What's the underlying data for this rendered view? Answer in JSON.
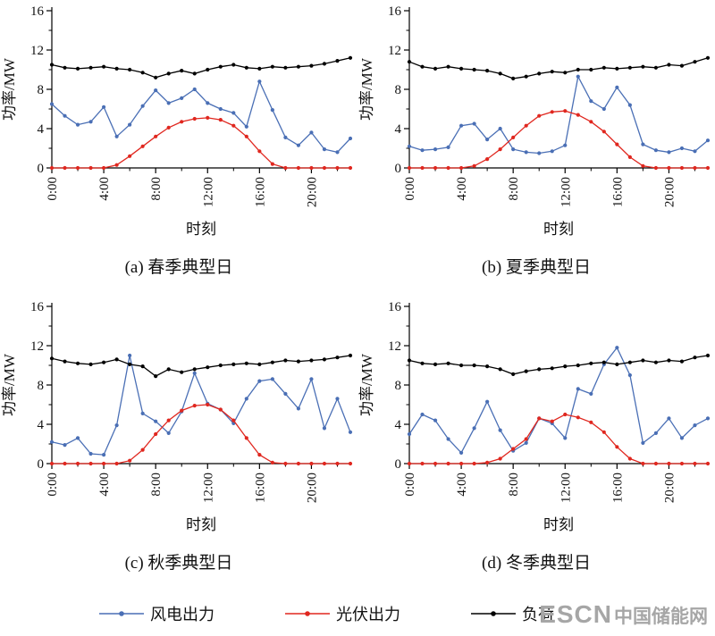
{
  "figure": {
    "ylabel": "功率/MW",
    "xlabel": "时刻",
    "background": "#ffffff"
  },
  "legend": {
    "items": [
      {
        "label": "风电出力",
        "color": "#4a6fb5"
      },
      {
        "label": "光伏出力",
        "color": "#e0271f"
      },
      {
        "label": "负荷",
        "color": "#000000"
      }
    ]
  },
  "watermark": {
    "text_en": "ESCN",
    "text_cn": "中国储能网"
  },
  "chart_data": [
    {
      "type": "line",
      "title": "(a) 春季典型日",
      "xlabel": "时刻",
      "ylabel": "功率/MW",
      "ylim": [
        0,
        16
      ],
      "yticks": [
        0,
        4,
        8,
        12,
        16
      ],
      "xtick_hours": [
        0,
        4,
        8,
        12,
        16,
        20
      ],
      "xtick_labels": [
        "0:00",
        "4:00",
        "8:00",
        "12:00",
        "16:00",
        "20:00"
      ],
      "x_hours": [
        0,
        1,
        2,
        3,
        4,
        5,
        6,
        7,
        8,
        9,
        10,
        11,
        12,
        13,
        14,
        15,
        16,
        17,
        18,
        19,
        20,
        21,
        22,
        23
      ],
      "series": [
        {
          "name": "风电出力",
          "color": "#4a6fb5",
          "values": [
            6.5,
            5.3,
            4.4,
            4.7,
            6.2,
            3.2,
            4.4,
            6.3,
            7.9,
            6.6,
            7.1,
            8.0,
            6.6,
            6.0,
            5.6,
            4.2,
            8.8,
            5.9,
            3.1,
            2.3,
            3.6,
            1.9,
            1.6,
            3.0
          ]
        },
        {
          "name": "光伏出力",
          "color": "#e0271f",
          "values": [
            0,
            0,
            0,
            0,
            0,
            0.3,
            1.2,
            2.2,
            3.2,
            4.1,
            4.7,
            5.0,
            5.1,
            4.9,
            4.3,
            3.2,
            1.7,
            0.4,
            0,
            0,
            0,
            0,
            0,
            0
          ]
        },
        {
          "name": "负荷",
          "color": "#000000",
          "values": [
            10.5,
            10.2,
            10.1,
            10.2,
            10.3,
            10.1,
            10.0,
            9.7,
            9.2,
            9.6,
            9.9,
            9.6,
            10.0,
            10.3,
            10.5,
            10.2,
            10.1,
            10.3,
            10.2,
            10.3,
            10.4,
            10.6,
            10.9,
            11.2
          ]
        }
      ]
    },
    {
      "type": "line",
      "title": "(b) 夏季典型日",
      "xlabel": "时刻",
      "ylabel": "功率/MW",
      "ylim": [
        0,
        16
      ],
      "yticks": [
        0,
        4,
        8,
        12,
        16
      ],
      "xtick_hours": [
        0,
        4,
        8,
        12,
        16,
        20
      ],
      "xtick_labels": [
        "0:00",
        "4:00",
        "8:00",
        "12:00",
        "16:00",
        "20:00"
      ],
      "x_hours": [
        0,
        1,
        2,
        3,
        4,
        5,
        6,
        7,
        8,
        9,
        10,
        11,
        12,
        13,
        14,
        15,
        16,
        17,
        18,
        19,
        20,
        21,
        22,
        23
      ],
      "series": [
        {
          "name": "风电出力",
          "color": "#4a6fb5",
          "values": [
            2.2,
            1.8,
            1.9,
            2.1,
            4.3,
            4.5,
            2.9,
            4.0,
            1.9,
            1.6,
            1.5,
            1.7,
            2.3,
            9.3,
            6.8,
            6.0,
            8.2,
            6.4,
            2.4,
            1.8,
            1.6,
            2.0,
            1.7,
            2.8
          ]
        },
        {
          "name": "光伏出力",
          "color": "#e0271f",
          "values": [
            0,
            0,
            0,
            0,
            0,
            0.2,
            0.9,
            1.9,
            3.1,
            4.3,
            5.3,
            5.7,
            5.8,
            5.4,
            4.7,
            3.7,
            2.4,
            1.1,
            0.2,
            0,
            0,
            0,
            0,
            0
          ]
        },
        {
          "name": "负荷",
          "color": "#000000",
          "values": [
            10.8,
            10.3,
            10.1,
            10.3,
            10.1,
            10.0,
            9.9,
            9.6,
            9.1,
            9.3,
            9.6,
            9.8,
            9.7,
            10.0,
            10.0,
            10.2,
            10.1,
            10.2,
            10.3,
            10.2,
            10.5,
            10.4,
            10.8,
            11.2
          ]
        }
      ]
    },
    {
      "type": "line",
      "title": "(c) 秋季典型日",
      "xlabel": "时刻",
      "ylabel": "功率/MW",
      "ylim": [
        0,
        16
      ],
      "yticks": [
        0,
        4,
        8,
        12,
        16
      ],
      "xtick_hours": [
        0,
        4,
        8,
        12,
        16,
        20
      ],
      "xtick_labels": [
        "0:00",
        "4:00",
        "8:00",
        "12:00",
        "16:00",
        "20:00"
      ],
      "x_hours": [
        0,
        1,
        2,
        3,
        4,
        5,
        6,
        7,
        8,
        9,
        10,
        11,
        12,
        13,
        14,
        15,
        16,
        17,
        18,
        19,
        20,
        21,
        22,
        23
      ],
      "series": [
        {
          "name": "风电出力",
          "color": "#4a6fb5",
          "values": [
            2.2,
            1.9,
            2.6,
            1.0,
            0.9,
            3.9,
            11.0,
            5.1,
            4.3,
            3.1,
            5.3,
            9.2,
            6.1,
            5.5,
            4.1,
            6.6,
            8.4,
            8.6,
            7.1,
            5.6,
            8.6,
            3.6,
            6.6,
            3.2
          ]
        },
        {
          "name": "光伏出力",
          "color": "#e0271f",
          "values": [
            0,
            0,
            0,
            0,
            0,
            0,
            0.3,
            1.4,
            3.0,
            4.4,
            5.4,
            5.9,
            6.0,
            5.5,
            4.4,
            2.6,
            0.9,
            0.1,
            0,
            0,
            0,
            0,
            0,
            0
          ]
        },
        {
          "name": "负荷",
          "color": "#000000",
          "values": [
            10.7,
            10.4,
            10.2,
            10.1,
            10.3,
            10.6,
            10.1,
            9.9,
            8.9,
            9.6,
            9.3,
            9.6,
            9.8,
            10.0,
            10.1,
            10.2,
            10.1,
            10.3,
            10.5,
            10.4,
            10.5,
            10.6,
            10.8,
            11.0
          ]
        }
      ]
    },
    {
      "type": "line",
      "title": "(d) 冬季典型日",
      "xlabel": "时刻",
      "ylabel": "功率/MW",
      "ylim": [
        0,
        16
      ],
      "yticks": [
        0,
        4,
        8,
        12,
        16
      ],
      "xtick_hours": [
        0,
        4,
        8,
        12,
        16,
        20
      ],
      "xtick_labels": [
        "0:00",
        "4:00",
        "8:00",
        "12:00",
        "16:00",
        "20:00"
      ],
      "x_hours": [
        0,
        1,
        2,
        3,
        4,
        5,
        6,
        7,
        8,
        9,
        10,
        11,
        12,
        13,
        14,
        15,
        16,
        17,
        18,
        19,
        20,
        21,
        22,
        23
      ],
      "series": [
        {
          "name": "风电出力",
          "color": "#4a6fb5",
          "values": [
            3.0,
            5.0,
            4.4,
            2.5,
            1.1,
            3.6,
            6.3,
            3.4,
            1.3,
            2.1,
            4.6,
            4.1,
            2.6,
            7.6,
            7.1,
            10.1,
            11.8,
            9.0,
            2.1,
            3.1,
            4.6,
            2.6,
            3.9,
            4.6
          ]
        },
        {
          "name": "光伏出力",
          "color": "#e0271f",
          "values": [
            0,
            0,
            0,
            0,
            0,
            0,
            0.1,
            0.5,
            1.5,
            2.5,
            4.6,
            4.3,
            5.0,
            4.7,
            4.2,
            3.2,
            1.7,
            0.5,
            0,
            0,
            0,
            0,
            0,
            0
          ]
        },
        {
          "name": "负荷",
          "color": "#000000",
          "values": [
            10.5,
            10.2,
            10.1,
            10.2,
            10.0,
            10.0,
            9.9,
            9.6,
            9.1,
            9.4,
            9.6,
            9.7,
            9.9,
            10.0,
            10.2,
            10.3,
            10.1,
            10.3,
            10.5,
            10.3,
            10.5,
            10.4,
            10.8,
            11.0
          ]
        }
      ]
    }
  ]
}
